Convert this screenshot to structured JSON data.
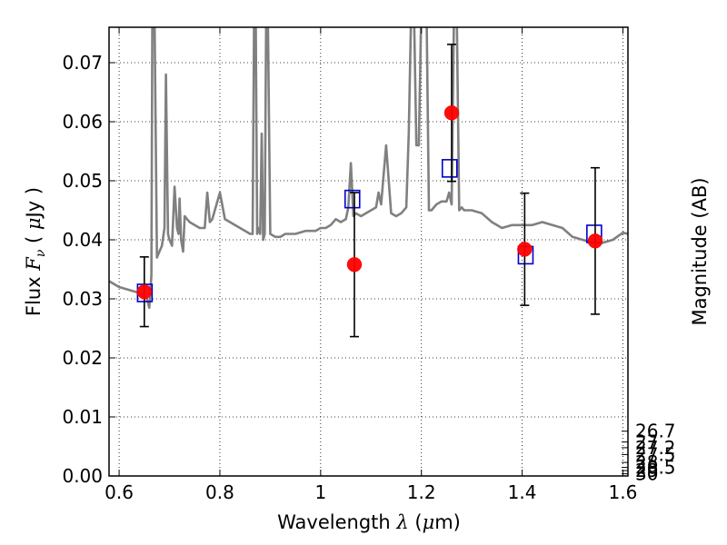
{
  "chart_data": {
    "type": "scatter",
    "xlabel": "Wavelength λ (μm)",
    "ylabel": "Flux F_ν ( μJy )",
    "y2label": "Magnitude (AB)",
    "xlim": [
      0.58,
      1.61
    ],
    "ylim": [
      0.0,
      0.076
    ],
    "grid": true,
    "x_ticks": [
      0.6,
      0.8,
      1.0,
      1.2,
      1.4,
      1.6
    ],
    "x_tick_labels": [
      "0.6",
      "0.8",
      "1",
      "1.2",
      "1.4",
      "1.6"
    ],
    "y_ticks": [
      0.0,
      0.01,
      0.02,
      0.03,
      0.04,
      0.05,
      0.06,
      0.07
    ],
    "y_tick_labels": [
      "0.00",
      "0.01",
      "0.02",
      "0.03",
      "0.04",
      "0.05",
      "0.06",
      "0.07"
    ],
    "y2_ticks": [
      26.7,
      27.0,
      27.2,
      27.5,
      28.0,
      28.5,
      29.0,
      30.0
    ],
    "y2_tick_labels": [
      "26.7",
      "27",
      "27.2",
      "27.5",
      "28",
      "28.5",
      "29",
      "30"
    ],
    "colors": {
      "model": "#808080",
      "observed": "#ff0000",
      "model_photometry": "#0000cc",
      "errorbar": "#000000"
    },
    "series": [
      {
        "type": "line",
        "x": [
          0.58,
          0.6,
          0.62,
          0.64,
          0.655,
          0.66,
          0.664,
          0.666,
          0.67,
          0.675,
          0.68,
          0.685,
          0.69,
          0.693,
          0.697,
          0.7,
          0.705,
          0.71,
          0.715,
          0.718,
          0.72,
          0.723,
          0.727,
          0.73,
          0.735,
          0.74,
          0.75,
          0.76,
          0.77,
          0.775,
          0.78,
          0.785,
          0.8,
          0.81,
          0.82,
          0.83,
          0.84,
          0.85,
          0.86,
          0.865,
          0.868,
          0.871,
          0.874,
          0.877,
          0.88,
          0.883,
          0.886,
          0.889,
          0.892,
          0.895,
          0.9,
          0.91,
          0.92,
          0.93,
          0.95,
          0.97,
          0.99,
          1.0,
          1.01,
          1.02,
          1.03,
          1.04,
          1.05,
          1.055,
          1.06,
          1.065,
          1.07,
          1.08,
          1.09,
          1.1,
          1.11,
          1.115,
          1.12,
          1.13,
          1.14,
          1.15,
          1.16,
          1.17,
          1.175,
          1.18,
          1.185,
          1.19,
          1.195,
          1.2,
          1.205,
          1.21,
          1.215,
          1.22,
          1.23,
          1.24,
          1.25,
          1.255,
          1.26,
          1.265,
          1.27,
          1.275,
          1.28,
          1.285,
          1.29,
          1.3,
          1.32,
          1.34,
          1.36,
          1.38,
          1.4,
          1.42,
          1.44,
          1.46,
          1.48,
          1.5,
          1.52,
          1.54,
          1.56,
          1.58,
          1.6,
          1.61
        ],
        "y": [
          0.033,
          0.032,
          0.0315,
          0.031,
          0.03,
          0.0285,
          0.034,
          0.08,
          0.08,
          0.037,
          0.038,
          0.039,
          0.042,
          0.068,
          0.041,
          0.04,
          0.039,
          0.049,
          0.042,
          0.041,
          0.047,
          0.04,
          0.038,
          0.044,
          0.0435,
          0.043,
          0.0425,
          0.042,
          0.042,
          0.048,
          0.043,
          0.0435,
          0.048,
          0.0435,
          0.043,
          0.0425,
          0.042,
          0.0415,
          0.041,
          0.041,
          0.08,
          0.08,
          0.041,
          0.042,
          0.041,
          0.058,
          0.04,
          0.041,
          0.08,
          0.08,
          0.041,
          0.0405,
          0.0405,
          0.041,
          0.041,
          0.0415,
          0.0415,
          0.042,
          0.042,
          0.0425,
          0.0435,
          0.043,
          0.0435,
          0.0455,
          0.053,
          0.044,
          0.0445,
          0.044,
          0.0445,
          0.045,
          0.0455,
          0.048,
          0.046,
          0.056,
          0.0445,
          0.044,
          0.0445,
          0.0455,
          0.058,
          0.08,
          0.08,
          0.056,
          0.056,
          0.08,
          0.08,
          0.08,
          0.045,
          0.045,
          0.046,
          0.0465,
          0.0465,
          0.048,
          0.046,
          0.08,
          0.08,
          0.045,
          0.0455,
          0.045,
          0.045,
          0.045,
          0.0445,
          0.043,
          0.042,
          0.0425,
          0.0425,
          0.0425,
          0.043,
          0.0425,
          0.042,
          0.0405,
          0.04,
          0.0395,
          0.0395,
          0.04,
          0.0412,
          0.041
        ]
      },
      {
        "type": "errorbar",
        "x": [
          0.65,
          1.067,
          1.26,
          1.405,
          1.545
        ],
        "y": [
          0.0312,
          0.0358,
          0.0615,
          0.0384,
          0.0398
        ],
        "yerr": [
          0.0059,
          0.0122,
          0.0116,
          0.0095,
          0.0124
        ]
      },
      {
        "type": "scatter",
        "marker": "open-square",
        "x": [
          0.651,
          1.063,
          1.256,
          1.407,
          1.543
        ],
        "y": [
          0.031,
          0.0469,
          0.0521,
          0.0374,
          0.041
        ]
      }
    ]
  }
}
